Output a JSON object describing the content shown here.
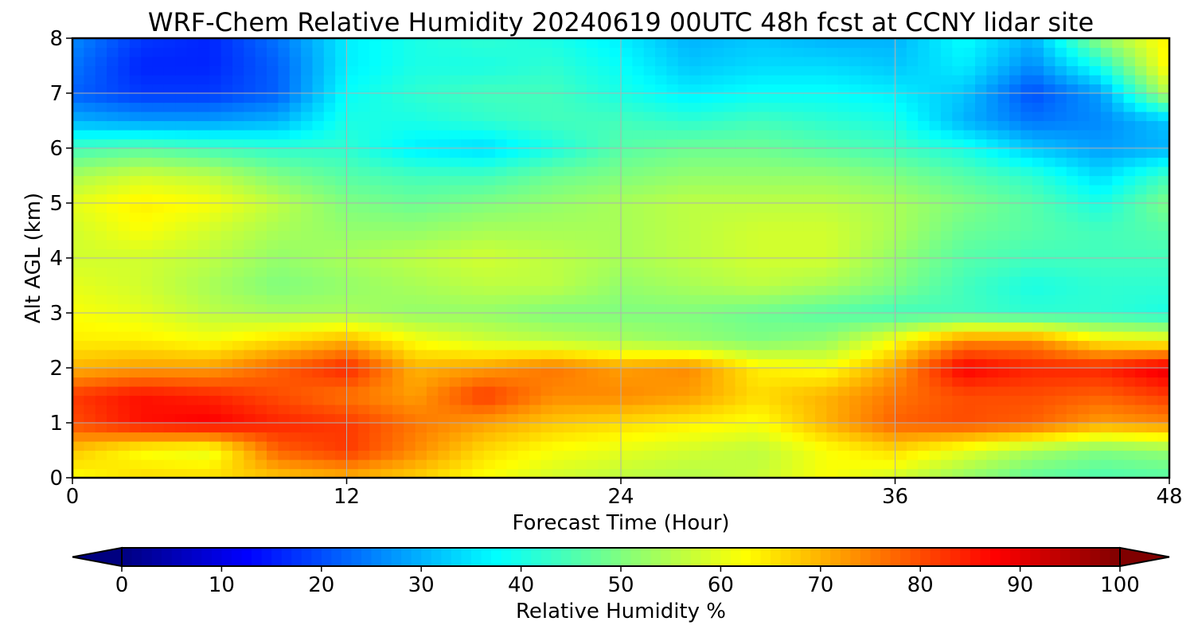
{
  "chart_data": {
    "type": "heatmap",
    "title": "WRF-Chem Relative Humidity 20240619 00UTC 48h fcst at CCNY lidar site",
    "xlabel": "Forecast Time (Hour)",
    "ylabel": "Alt AGL (km)",
    "xlim": [
      0,
      48
    ],
    "ylim": [
      0,
      8
    ],
    "x_ticks": [
      "0",
      "12",
      "24",
      "36",
      "48"
    ],
    "y_ticks": [
      "0",
      "1",
      "2",
      "3",
      "4",
      "5",
      "6",
      "7",
      "8"
    ],
    "grid": true,
    "colormap": "jet",
    "colorbar": {
      "label": "Relative Humidity %",
      "range": [
        0,
        100
      ],
      "ticks": [
        "0",
        "10",
        "20",
        "30",
        "40",
        "50",
        "60",
        "70",
        "80",
        "90",
        "100"
      ],
      "extend": "both",
      "placement": "bottom"
    },
    "x": [
      0,
      3,
      6,
      9,
      12,
      15,
      18,
      21,
      24,
      27,
      30,
      33,
      36,
      39,
      42,
      45,
      48
    ],
    "y": [
      0,
      0.5,
      1,
      1.5,
      2,
      2.5,
      3,
      3.5,
      4,
      4.5,
      5,
      5.5,
      6,
      6.5,
      7,
      7.5,
      8
    ],
    "z": [
      [
        62,
        66,
        66,
        68,
        70,
        67,
        62,
        58,
        56,
        55,
        57,
        62,
        58,
        52,
        47,
        45,
        46
      ],
      [
        68,
        62,
        60,
        78,
        82,
        74,
        66,
        62,
        60,
        58,
        56,
        62,
        66,
        60,
        54,
        50,
        52
      ],
      [
        80,
        86,
        88,
        84,
        82,
        76,
        72,
        68,
        66,
        64,
        62,
        70,
        78,
        80,
        78,
        72,
        74
      ],
      [
        82,
        86,
        84,
        80,
        76,
        72,
        82,
        74,
        74,
        72,
        66,
        70,
        76,
        80,
        80,
        78,
        82
      ],
      [
        70,
        72,
        72,
        78,
        84,
        70,
        72,
        76,
        72,
        74,
        64,
        62,
        72,
        88,
        84,
        84,
        90
      ],
      [
        64,
        64,
        62,
        66,
        70,
        62,
        58,
        56,
        54,
        52,
        50,
        52,
        62,
        74,
        74,
        64,
        62
      ],
      [
        62,
        60,
        56,
        54,
        54,
        52,
        52,
        50,
        50,
        50,
        48,
        46,
        44,
        44,
        42,
        42,
        40
      ],
      [
        60,
        58,
        54,
        50,
        52,
        54,
        56,
        56,
        52,
        54,
        56,
        54,
        50,
        44,
        40,
        42,
        42
      ],
      [
        58,
        58,
        56,
        52,
        54,
        56,
        58,
        56,
        54,
        56,
        58,
        58,
        52,
        46,
        44,
        44,
        44
      ],
      [
        58,
        62,
        58,
        54,
        52,
        52,
        54,
        54,
        54,
        56,
        58,
        58,
        54,
        48,
        46,
        44,
        46
      ],
      [
        60,
        64,
        62,
        56,
        50,
        48,
        50,
        52,
        54,
        56,
        56,
        56,
        54,
        50,
        46,
        40,
        50
      ],
      [
        54,
        58,
        56,
        50,
        46,
        44,
        44,
        48,
        50,
        52,
        52,
        52,
        50,
        46,
        42,
        34,
        44
      ],
      [
        44,
        46,
        44,
        42,
        42,
        36,
        34,
        40,
        46,
        48,
        48,
        46,
        44,
        40,
        32,
        28,
        30
      ],
      [
        30,
        28,
        28,
        30,
        40,
        40,
        42,
        44,
        44,
        42,
        44,
        42,
        40,
        30,
        24,
        26,
        32
      ],
      [
        22,
        18,
        18,
        22,
        38,
        42,
        44,
        44,
        40,
        36,
        38,
        38,
        36,
        32,
        20,
        28,
        56
      ],
      [
        24,
        16,
        16,
        22,
        36,
        40,
        40,
        42,
        38,
        32,
        34,
        34,
        32,
        36,
        26,
        40,
        64
      ],
      [
        26,
        18,
        16,
        24,
        36,
        40,
        42,
        40,
        36,
        30,
        32,
        30,
        30,
        38,
        30,
        52,
        64
      ]
    ]
  }
}
